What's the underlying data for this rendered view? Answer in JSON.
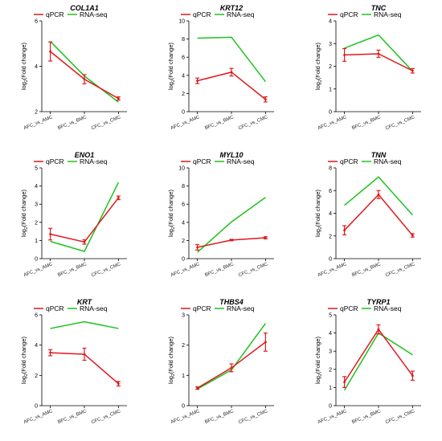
{
  "figure": {
    "colors": {
      "qpcr": "#e0191e",
      "rnaseq": "#1ec21e",
      "axis": "#000000"
    },
    "ylabel_prefix": "log",
    "ylabel_sub": "2",
    "ylabel_suffix": "(Fold change)"
  },
  "chart_data": [
    {
      "type": "line",
      "title": "COL1A1",
      "categories": [
        "AFC_vs_AMC",
        "BFC_vs_BMC",
        "CFC_vs_CMC"
      ],
      "ylim": [
        2,
        6
      ],
      "yticks": [
        2,
        4,
        6
      ],
      "series": [
        {
          "name": "qPCR",
          "values": [
            4.65,
            3.43,
            2.58
          ],
          "errors": [
            0.42,
            0.2,
            0.07
          ]
        },
        {
          "name": "RNA-seq",
          "values": [
            5.1,
            3.57,
            2.42
          ]
        }
      ]
    },
    {
      "type": "line",
      "title": "KRT12",
      "categories": [
        "AFC_vs_AMC",
        "BFC_vs_BMC",
        "CFC_vs_CMC"
      ],
      "ylim": [
        0,
        10
      ],
      "yticks": [
        0,
        2,
        4,
        6,
        8,
        10
      ],
      "series": [
        {
          "name": "qPCR",
          "values": [
            3.4,
            4.35,
            1.35
          ],
          "errors": [
            0.3,
            0.42,
            0.28
          ]
        },
        {
          "name": "RNA-seq",
          "values": [
            8.1,
            8.2,
            3.3
          ]
        }
      ]
    },
    {
      "type": "line",
      "title": "TNC",
      "categories": [
        "AFC_vs_AMC",
        "BFC_vs_BMC",
        "CFC_vs_CMC"
      ],
      "ylim": [
        0,
        4
      ],
      "yticks": [
        0,
        1,
        2,
        3,
        4
      ],
      "series": [
        {
          "name": "qPCR",
          "values": [
            2.5,
            2.55,
            1.8
          ],
          "errors": [
            0.28,
            0.16,
            0.1
          ]
        },
        {
          "name": "RNA-seq",
          "values": [
            2.8,
            3.38,
            1.78
          ]
        }
      ]
    },
    {
      "type": "line",
      "title": "ENO1",
      "categories": [
        "AFC_vs_AMC",
        "BFC_vs_BMC",
        "CFC_vs_CMC"
      ],
      "ylim": [
        0,
        5
      ],
      "yticks": [
        0,
        1,
        2,
        3,
        4,
        5
      ],
      "series": [
        {
          "name": "qPCR",
          "values": [
            1.35,
            0.92,
            3.35
          ],
          "errors": [
            0.32,
            0.12,
            0.1
          ]
        },
        {
          "name": "RNA-seq",
          "values": [
            0.95,
            0.4,
            4.2
          ]
        }
      ]
    },
    {
      "type": "line",
      "title": "MYL10",
      "categories": [
        "AFC_vs_AMC",
        "BFC_vs_BMC",
        "CFC_vs_CMC"
      ],
      "ylim": [
        0,
        10
      ],
      "yticks": [
        0,
        2,
        4,
        6,
        8,
        10
      ],
      "series": [
        {
          "name": "qPCR",
          "values": [
            1.25,
            2.05,
            2.3
          ],
          "errors": [
            0.3,
            0.08,
            0.12
          ]
        },
        {
          "name": "RNA-seq",
          "values": [
            0.7,
            4.05,
            6.75
          ]
        }
      ]
    },
    {
      "type": "line",
      "title": "TNN",
      "categories": [
        "AFC_vs_AMC",
        "BFC_vs_BMC",
        "CFC_vs_CMC"
      ],
      "ylim": [
        0,
        8
      ],
      "yticks": [
        0,
        2,
        4,
        6,
        8
      ],
      "series": [
        {
          "name": "qPCR",
          "values": [
            2.5,
            5.65,
            2.05
          ],
          "errors": [
            0.4,
            0.35,
            0.15
          ]
        },
        {
          "name": "RNA-seq",
          "values": [
            4.7,
            7.2,
            3.85
          ]
        }
      ]
    },
    {
      "type": "line",
      "title": "KRT",
      "categories": [
        "AFC_vs_AMC",
        "BFC_vs_BMC",
        "CFC_vs_CMC"
      ],
      "ylim": [
        0,
        6
      ],
      "yticks": [
        0,
        2,
        4,
        6
      ],
      "series": [
        {
          "name": "qPCR",
          "values": [
            3.5,
            3.4,
            1.45
          ],
          "errors": [
            0.2,
            0.4,
            0.15
          ]
        },
        {
          "name": "RNA-seq",
          "values": [
            5.1,
            5.55,
            5.1
          ]
        }
      ]
    },
    {
      "type": "line",
      "title": "THBS4",
      "categories": [
        "AFC_vs_AMC",
        "BFC_vs_BMC",
        "CFC_vs_CMC"
      ],
      "ylim": [
        0,
        3
      ],
      "yticks": [
        0,
        1,
        2,
        3
      ],
      "series": [
        {
          "name": "qPCR",
          "values": [
            0.58,
            1.25,
            2.1
          ],
          "errors": [
            0.04,
            0.13,
            0.3
          ]
        },
        {
          "name": "RNA-seq",
          "values": [
            0.55,
            1.18,
            2.72
          ]
        }
      ]
    },
    {
      "type": "line",
      "title": "TYRP1",
      "categories": [
        "AFC_vs_AMC",
        "BFC_vs_BMC",
        "CFC_vs_CMC"
      ],
      "ylim": [
        0,
        5
      ],
      "yticks": [
        0,
        1,
        2,
        3,
        4,
        5
      ],
      "series": [
        {
          "name": "qPCR",
          "values": [
            1.3,
            4.2,
            1.65
          ],
          "errors": [
            0.3,
            0.25,
            0.25
          ]
        },
        {
          "name": "RNA-seq",
          "values": [
            0.85,
            4.0,
            2.8
          ]
        }
      ]
    }
  ]
}
